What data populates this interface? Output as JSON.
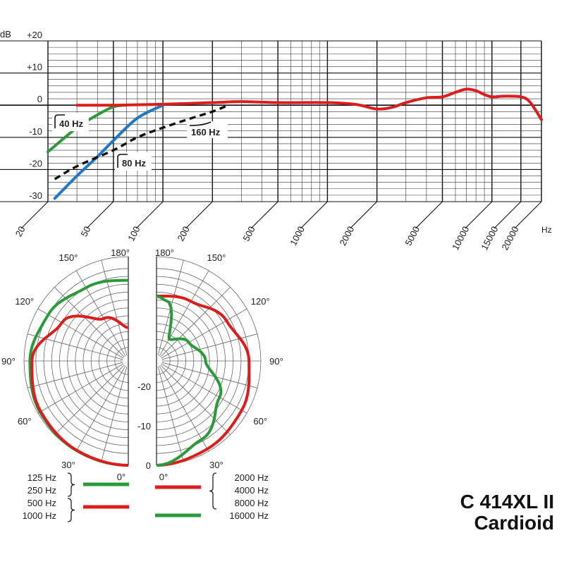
{
  "chart_data": [
    {
      "type": "line",
      "title": "",
      "xlabel": "Hz",
      "ylabel": "dB",
      "x_scale": "log",
      "xlim": [
        20,
        20000
      ],
      "ylim": [
        -30,
        20
      ],
      "grid": true,
      "y_ticks": [
        "+20",
        "+10",
        "0",
        "-10",
        "-20",
        "-30"
      ],
      "x_ticks": [
        "20",
        "50",
        "100",
        "200",
        "500",
        "1000",
        "2000",
        "5000",
        "10000",
        "15000",
        "20000"
      ],
      "series": [
        {
          "name": "",
          "color": "#dd1c1c",
          "style": "solid",
          "x": [
            30,
            50,
            100,
            200,
            300,
            500,
            1000,
            1500,
            2000,
            2500,
            3000,
            4000,
            5000,
            6000,
            7000,
            8000,
            9000,
            10000,
            12000,
            15000,
            17000,
            20000
          ],
          "y": [
            0,
            0,
            0.3,
            0.8,
            1.1,
            0.8,
            0.8,
            0.2,
            -1.2,
            -0.6,
            0.8,
            2.3,
            2.6,
            4.0,
            5.0,
            4.5,
            3.3,
            2.6,
            2.8,
            2.6,
            1.0,
            -4.5
          ]
        },
        {
          "name": "40 Hz",
          "color": "#2a9a3a",
          "style": "solid",
          "x": [
            20,
            30,
            40,
            50,
            60
          ],
          "y": [
            -14.5,
            -7,
            -3,
            -0.5,
            0
          ]
        },
        {
          "name": "80 Hz",
          "color": "#2277c9",
          "style": "solid",
          "x": [
            22,
            30,
            40,
            50,
            70,
            100
          ],
          "y": [
            -29,
            -22,
            -16,
            -11,
            -4,
            0
          ]
        },
        {
          "name": "160 Hz",
          "color": "#111111",
          "style": "dashed",
          "x": [
            22,
            30,
            50,
            70,
            100,
            150,
            200,
            250
          ],
          "y": [
            -23,
            -19,
            -14,
            -10,
            -7,
            -4,
            -2,
            0
          ]
        }
      ],
      "annotations": [
        {
          "text": "40 Hz"
        },
        {
          "text": "80 Hz"
        },
        {
          "text": "160 Hz"
        }
      ]
    },
    {
      "type": "polar",
      "angle_labels": [
        "180°",
        "150°",
        "120°",
        "90°",
        "60°",
        "30°",
        "0°"
      ],
      "radial_labels": [
        "-20",
        "-10",
        "0"
      ],
      "rlim": [
        -25,
        0
      ],
      "left_series": [
        {
          "name": "125 Hz / 250 Hz",
          "color": "#2a9a3a",
          "angles": [
            0,
            30,
            60,
            90,
            120,
            150,
            180
          ],
          "values": [
            0,
            -0.2,
            -0.6,
            -1.5,
            -3,
            -5,
            -6
          ]
        },
        {
          "name": "500 Hz / 1000 Hz",
          "color": "#dd1c1c",
          "angles": [
            0,
            30,
            60,
            90,
            120,
            150,
            180
          ],
          "values": [
            0,
            -0.3,
            -0.8,
            -2,
            -7,
            -14,
            -18
          ]
        }
      ],
      "right_series": [
        {
          "name": "2000 Hz / 4000 Hz / 8000 Hz",
          "color": "#dd1c1c",
          "angles": [
            0,
            30,
            60,
            90,
            120,
            150,
            180
          ],
          "values": [
            0,
            -0.7,
            -1.5,
            -3,
            -6,
            -9,
            -10
          ]
        },
        {
          "name": "16000 Hz",
          "color": "#2a9a3a",
          "angles": [
            0,
            30,
            60,
            90,
            120,
            150,
            170,
            180
          ],
          "values": [
            0,
            -3.5,
            -8,
            -14,
            -17,
            -20,
            -11,
            -10
          ]
        }
      ]
    }
  ],
  "legend": {
    "left_group1": [
      "125 Hz",
      "250 Hz"
    ],
    "left_group1_color": "#2a9a3a",
    "left_group2": [
      "500 Hz",
      "1000 Hz"
    ],
    "left_group2_color": "#dd1c1c",
    "right_group1": [
      "2000 Hz",
      "4000 Hz",
      "8000 Hz"
    ],
    "right_group1_color": "#dd1c1c",
    "right_group2": [
      "16000 Hz"
    ],
    "right_group2_color": "#2a9a3a"
  },
  "model": {
    "name": "C 414XL II",
    "pattern": "Cardioid"
  }
}
